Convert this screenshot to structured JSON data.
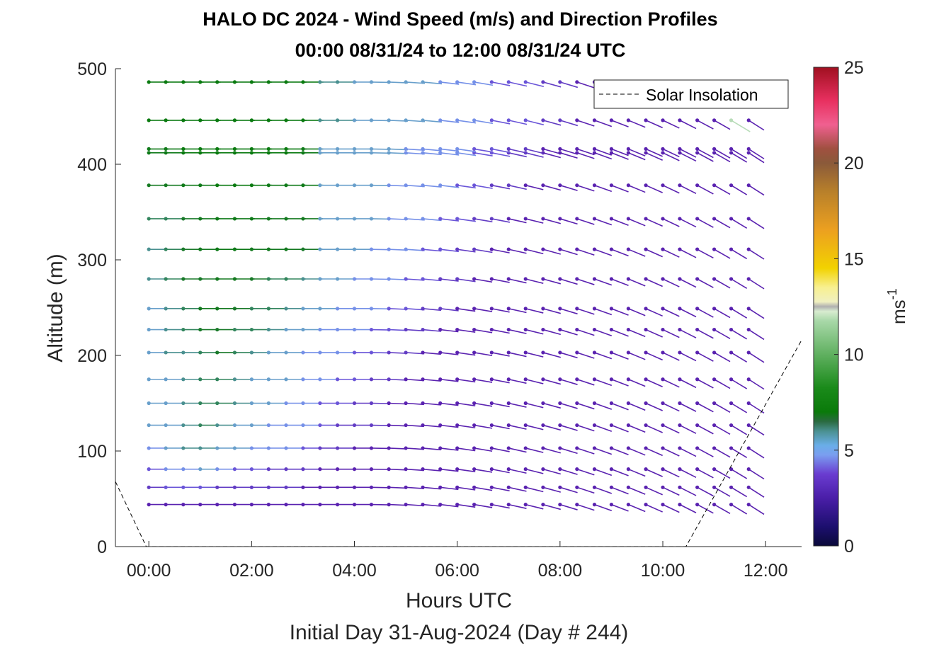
{
  "title_line1": "HALO DC 2024 - Wind Speed (m/s) and Direction Profiles",
  "title_line2": "00:00 08/31/24 to 12:00 08/31/24  UTC",
  "xlabel": "Hours UTC",
  "xlabel2": "Initial Day 31-Aug-2024 (Day # 244)",
  "ylabel": "Altitude (m)",
  "colorbar_label": "ms",
  "colorbar_label_sup": "-1",
  "legend_label": "Solar Insolation",
  "chart_data": {
    "type": "scatter",
    "title": "HALO DC 2024 - Wind Speed (m/s) and Direction Profiles",
    "subtitle": "00:00 08/31/24 to 12:00 08/31/24  UTC",
    "x_ticks": [
      "00:00",
      "02:00",
      "04:00",
      "06:00",
      "08:00",
      "10:00",
      "12:00"
    ],
    "x_tick_values": [
      0,
      2,
      4,
      6,
      8,
      10,
      12
    ],
    "xlim": [
      -0.65,
      12.7
    ],
    "y_ticks": [
      "0",
      "100",
      "200",
      "300",
      "400",
      "500"
    ],
    "y_tick_values": [
      0,
      100,
      200,
      300,
      400,
      500
    ],
    "ylim": [
      0,
      500
    ],
    "colorbar": {
      "ticks": [
        "0",
        "5",
        "10",
        "15",
        "20",
        "25"
      ],
      "tick_values": [
        0,
        5,
        10,
        15,
        20,
        25
      ],
      "range": [
        0,
        25
      ]
    },
    "legend_position": "top-right",
    "wind_barbs": {
      "times_hours": [
        0.0,
        0.33,
        0.67,
        1.0,
        1.33,
        1.67,
        2.0,
        2.33,
        2.67,
        3.0,
        3.33,
        3.67,
        4.0,
        4.33,
        4.67,
        5.0,
        5.33,
        5.67,
        6.0,
        6.33,
        6.67,
        7.0,
        7.33,
        7.67,
        8.0,
        8.33,
        8.67,
        9.0,
        9.33,
        9.67,
        10.0,
        10.33,
        10.67,
        11.0,
        11.33,
        11.67
      ],
      "altitudes_m": [
        44,
        62,
        81,
        103,
        127,
        150,
        175,
        203,
        227,
        249,
        280,
        311,
        343,
        378,
        412,
        416,
        446,
        486
      ],
      "approx_speed_ms": [
        [
          3,
          3,
          3,
          3,
          3,
          3,
          3,
          3,
          3,
          3,
          3,
          3,
          3,
          3,
          3,
          3,
          3,
          3,
          3,
          3,
          3,
          3,
          3,
          3,
          3,
          3,
          3,
          3,
          3,
          3,
          3,
          3,
          3,
          3,
          3,
          3
        ],
        [
          3.5,
          4,
          4,
          4,
          3.5,
          3.5,
          3.5,
          3.5,
          3.5,
          3,
          3,
          3,
          3,
          3,
          3,
          3,
          3,
          3,
          3,
          3,
          3,
          3,
          3,
          3,
          3,
          3,
          3,
          3,
          3,
          3,
          3,
          3,
          3,
          3,
          3,
          3
        ],
        [
          4,
          4.5,
          4.5,
          5,
          4.5,
          4,
          4,
          3.5,
          3.5,
          3.5,
          3,
          3,
          3,
          3,
          3,
          3,
          3,
          3,
          3,
          3,
          3,
          3,
          3,
          3,
          3,
          3,
          3,
          3,
          3,
          3,
          3,
          3,
          3,
          3,
          3,
          3
        ],
        [
          4.5,
          5,
          5.5,
          5.5,
          5,
          5,
          4.5,
          4.5,
          4.5,
          4,
          3.5,
          3.5,
          3,
          3,
          3,
          3,
          3,
          3,
          3,
          3,
          3,
          3,
          3,
          3,
          3,
          3,
          3,
          3,
          3,
          3,
          3,
          3,
          3,
          3,
          3,
          3
        ],
        [
          5,
          5,
          5.5,
          6,
          5.5,
          5,
          5,
          4.5,
          4.5,
          4.5,
          4,
          3.5,
          3.5,
          3.5,
          3,
          3,
          3,
          3,
          3,
          3,
          3,
          3,
          3,
          3,
          3,
          3,
          3,
          3,
          3,
          3,
          3,
          3,
          3,
          3,
          3,
          3
        ],
        [
          5,
          5,
          5.5,
          6,
          6,
          5.5,
          5,
          5,
          4.5,
          4.5,
          4,
          4,
          3.5,
          3.5,
          3,
          3,
          3,
          3,
          3,
          3,
          3,
          3,
          3,
          3,
          3,
          3,
          3,
          3,
          3,
          3,
          3,
          3,
          3,
          3,
          3,
          3
        ],
        [
          5,
          5,
          5.5,
          6,
          6,
          5.5,
          5,
          5,
          5,
          4.5,
          4.5,
          4,
          4,
          3.5,
          3.5,
          3,
          3,
          3,
          3,
          3,
          3,
          3,
          3,
          3,
          3,
          3,
          3,
          3,
          3,
          3,
          3,
          3,
          3,
          3,
          3,
          3
        ],
        [
          5,
          5.5,
          5.5,
          6,
          6.5,
          6,
          5.5,
          5,
          5,
          4.5,
          4.5,
          4.5,
          4,
          4,
          3.5,
          3.5,
          3,
          3,
          3,
          3,
          3,
          3,
          3,
          3,
          3,
          3,
          3,
          3,
          3,
          3,
          3,
          3,
          3,
          3,
          3,
          3
        ],
        [
          5,
          5.5,
          6,
          6.5,
          6.5,
          6,
          6,
          5.5,
          5,
          5,
          4.5,
          4.5,
          4.5,
          4,
          4,
          3.5,
          3.5,
          3,
          3,
          3,
          3,
          3,
          3,
          3,
          3,
          3,
          3,
          3,
          3,
          3,
          3,
          3,
          3,
          3,
          3,
          3
        ],
        [
          5,
          5.5,
          6,
          7,
          7,
          6.5,
          6,
          6,
          5.5,
          5,
          5,
          4.5,
          4.5,
          4.5,
          4,
          4,
          3.5,
          3.5,
          3,
          3,
          3,
          3,
          3,
          3,
          3,
          3,
          3,
          3,
          3,
          3,
          3,
          3,
          3,
          3,
          3,
          3
        ],
        [
          5.5,
          6,
          6.5,
          6.5,
          7,
          7,
          6.5,
          6,
          6,
          5.5,
          5,
          5,
          4.5,
          4.5,
          4.5,
          4,
          4,
          3.5,
          3.5,
          3,
          3,
          3,
          3,
          3,
          3,
          3,
          3,
          3,
          3,
          3,
          3,
          3,
          3,
          3,
          3,
          3
        ],
        [
          5.5,
          6,
          6.5,
          7,
          7.5,
          7.5,
          7,
          7,
          7,
          6.5,
          5,
          5,
          5,
          4.5,
          4.5,
          4.5,
          4,
          4,
          3.5,
          3.5,
          3,
          3,
          3,
          3,
          3,
          3,
          3,
          3,
          3,
          3,
          3,
          3,
          3,
          3,
          3,
          3
        ],
        [
          6,
          6,
          6.5,
          7,
          7.5,
          7.5,
          7.5,
          7,
          7,
          7,
          5,
          5,
          5,
          5,
          4.5,
          4.5,
          4.5,
          4,
          4,
          3.5,
          3.5,
          3,
          3,
          3,
          3,
          3,
          3,
          3,
          3,
          3,
          3,
          3,
          3,
          3,
          3,
          3
        ],
        [
          7,
          7,
          7.5,
          7.5,
          8,
          8,
          8,
          7.5,
          7.5,
          7.5,
          5,
          5,
          5,
          5,
          4.5,
          4.5,
          4.5,
          4.5,
          4,
          4,
          3.5,
          3.5,
          3,
          3,
          3,
          3,
          3,
          3,
          3,
          3,
          3,
          3,
          3,
          3,
          3,
          3
        ],
        [
          7.5,
          7.5,
          8,
          8,
          8,
          8,
          8,
          8,
          8,
          7.5,
          5,
          5,
          5,
          5,
          5,
          4.5,
          4.5,
          4.5,
          4.5,
          4,
          4,
          3.5,
          3.5,
          3,
          3,
          3,
          3,
          3,
          3,
          3,
          3,
          3,
          3,
          3,
          3,
          3
        ],
        [
          7.5,
          7.5,
          8,
          8,
          8,
          8,
          8,
          8,
          8,
          7.5,
          5,
          5,
          5,
          5,
          5,
          4.5,
          4.5,
          4.5,
          4.5,
          4,
          4,
          3.5,
          3.5,
          3,
          3,
          3,
          3,
          3,
          3,
          3,
          3,
          3,
          3,
          3,
          3,
          3
        ],
        [
          8,
          8,
          8,
          8,
          8,
          8,
          8,
          8,
          8,
          8,
          5.5,
          5.5,
          5,
          5,
          5,
          5,
          5,
          4.5,
          4.5,
          4.5,
          4,
          4,
          4,
          3.5,
          3.5,
          3,
          3,
          3,
          3,
          3,
          3,
          3,
          3,
          3,
          12,
          3
        ],
        [
          8,
          8,
          8,
          8,
          8,
          8,
          8,
          8,
          8,
          8,
          5.5,
          5.5,
          5,
          5,
          5,
          5,
          5,
          4.5,
          4.5,
          4.5,
          4,
          4,
          4,
          3.5,
          3.5,
          3,
          3,
          3,
          3,
          3,
          3,
          3,
          3,
          3,
          3,
          3
        ]
      ]
    },
    "solar_insolation_series": "dashed line, zero between about 00:00 and 10:30 UTC, rising before 00:00 and after 10:30"
  },
  "colors": {
    "axis": "#262626",
    "barb_low": "#5a22b0",
    "barb_mid": "#7aa8ee",
    "barb_high": "#0a7a10"
  }
}
